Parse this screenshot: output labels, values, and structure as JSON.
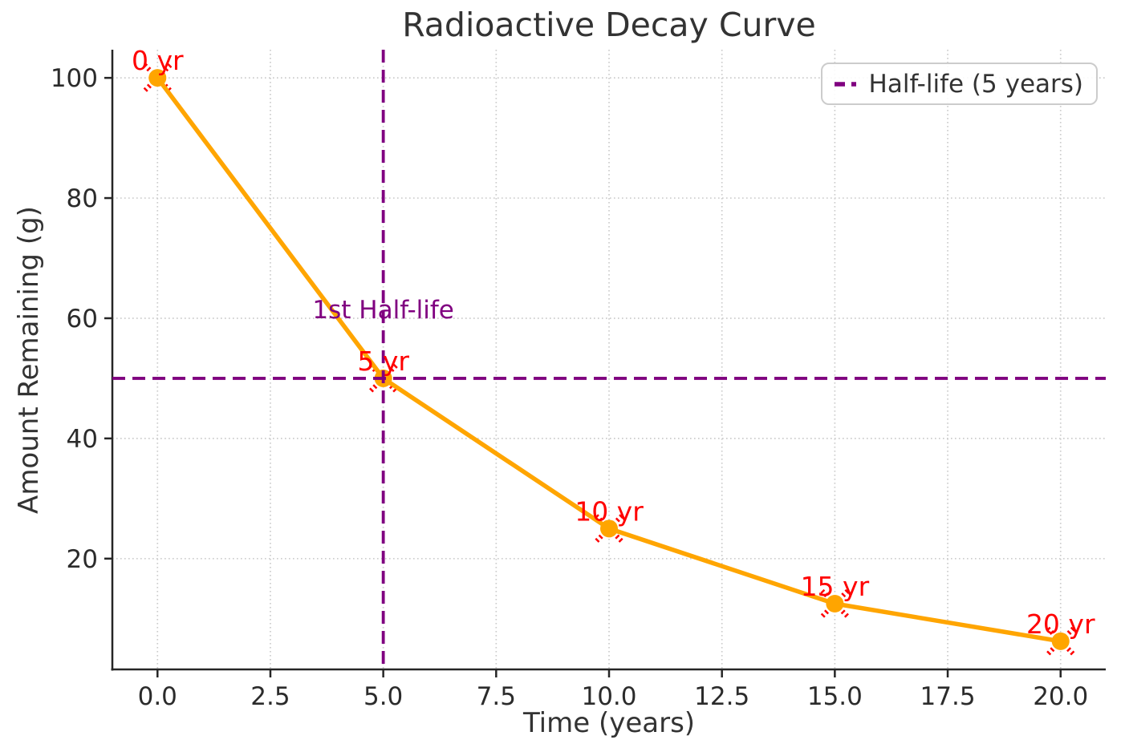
{
  "chart_data": {
    "type": "line",
    "title": "Radioactive Decay Curve",
    "xlabel": "Time (years)",
    "ylabel": "Amount Remaining (g)",
    "x": [
      0,
      5,
      10,
      15,
      20
    ],
    "y": [
      100,
      50,
      25,
      12.5,
      6.25
    ],
    "point_labels": [
      "0 yr",
      "5 yr",
      "10 yr",
      "15 yr",
      "20 yr"
    ],
    "xticks": [
      0,
      2.5,
      5,
      7.5,
      10,
      12.5,
      15,
      17.5,
      20
    ],
    "xtick_labels": [
      "0.0",
      "2.5",
      "5.0",
      "7.5",
      "10.0",
      "12.5",
      "15.0",
      "17.5",
      "20.0"
    ],
    "yticks": [
      20,
      40,
      60,
      80,
      100
    ],
    "ytick_labels": [
      "20",
      "40",
      "60",
      "80",
      "100"
    ],
    "xlim": [
      -1,
      21
    ],
    "ylim": [
      1.5625,
      104.6875
    ],
    "grid": "dotted",
    "halflife_vline_x": 5,
    "halflife_hline_y": 50,
    "annotation": {
      "text": "1st Half-life",
      "x": 5,
      "y": 60
    },
    "legend": {
      "label": "Half-life (5 years)",
      "position": "top-right"
    },
    "colors": {
      "line": "#FFA500",
      "marker_fill": "#FFA500",
      "marker_cross": "#FF0000",
      "point_label": "#FF0000",
      "halflife_line": "#800080",
      "annotation_text": "#800080",
      "text": "#333333",
      "tick_text": "#2b2b2b",
      "grid": "#cccccc",
      "spine": "#262626",
      "legend_border": "#cccccc"
    }
  }
}
